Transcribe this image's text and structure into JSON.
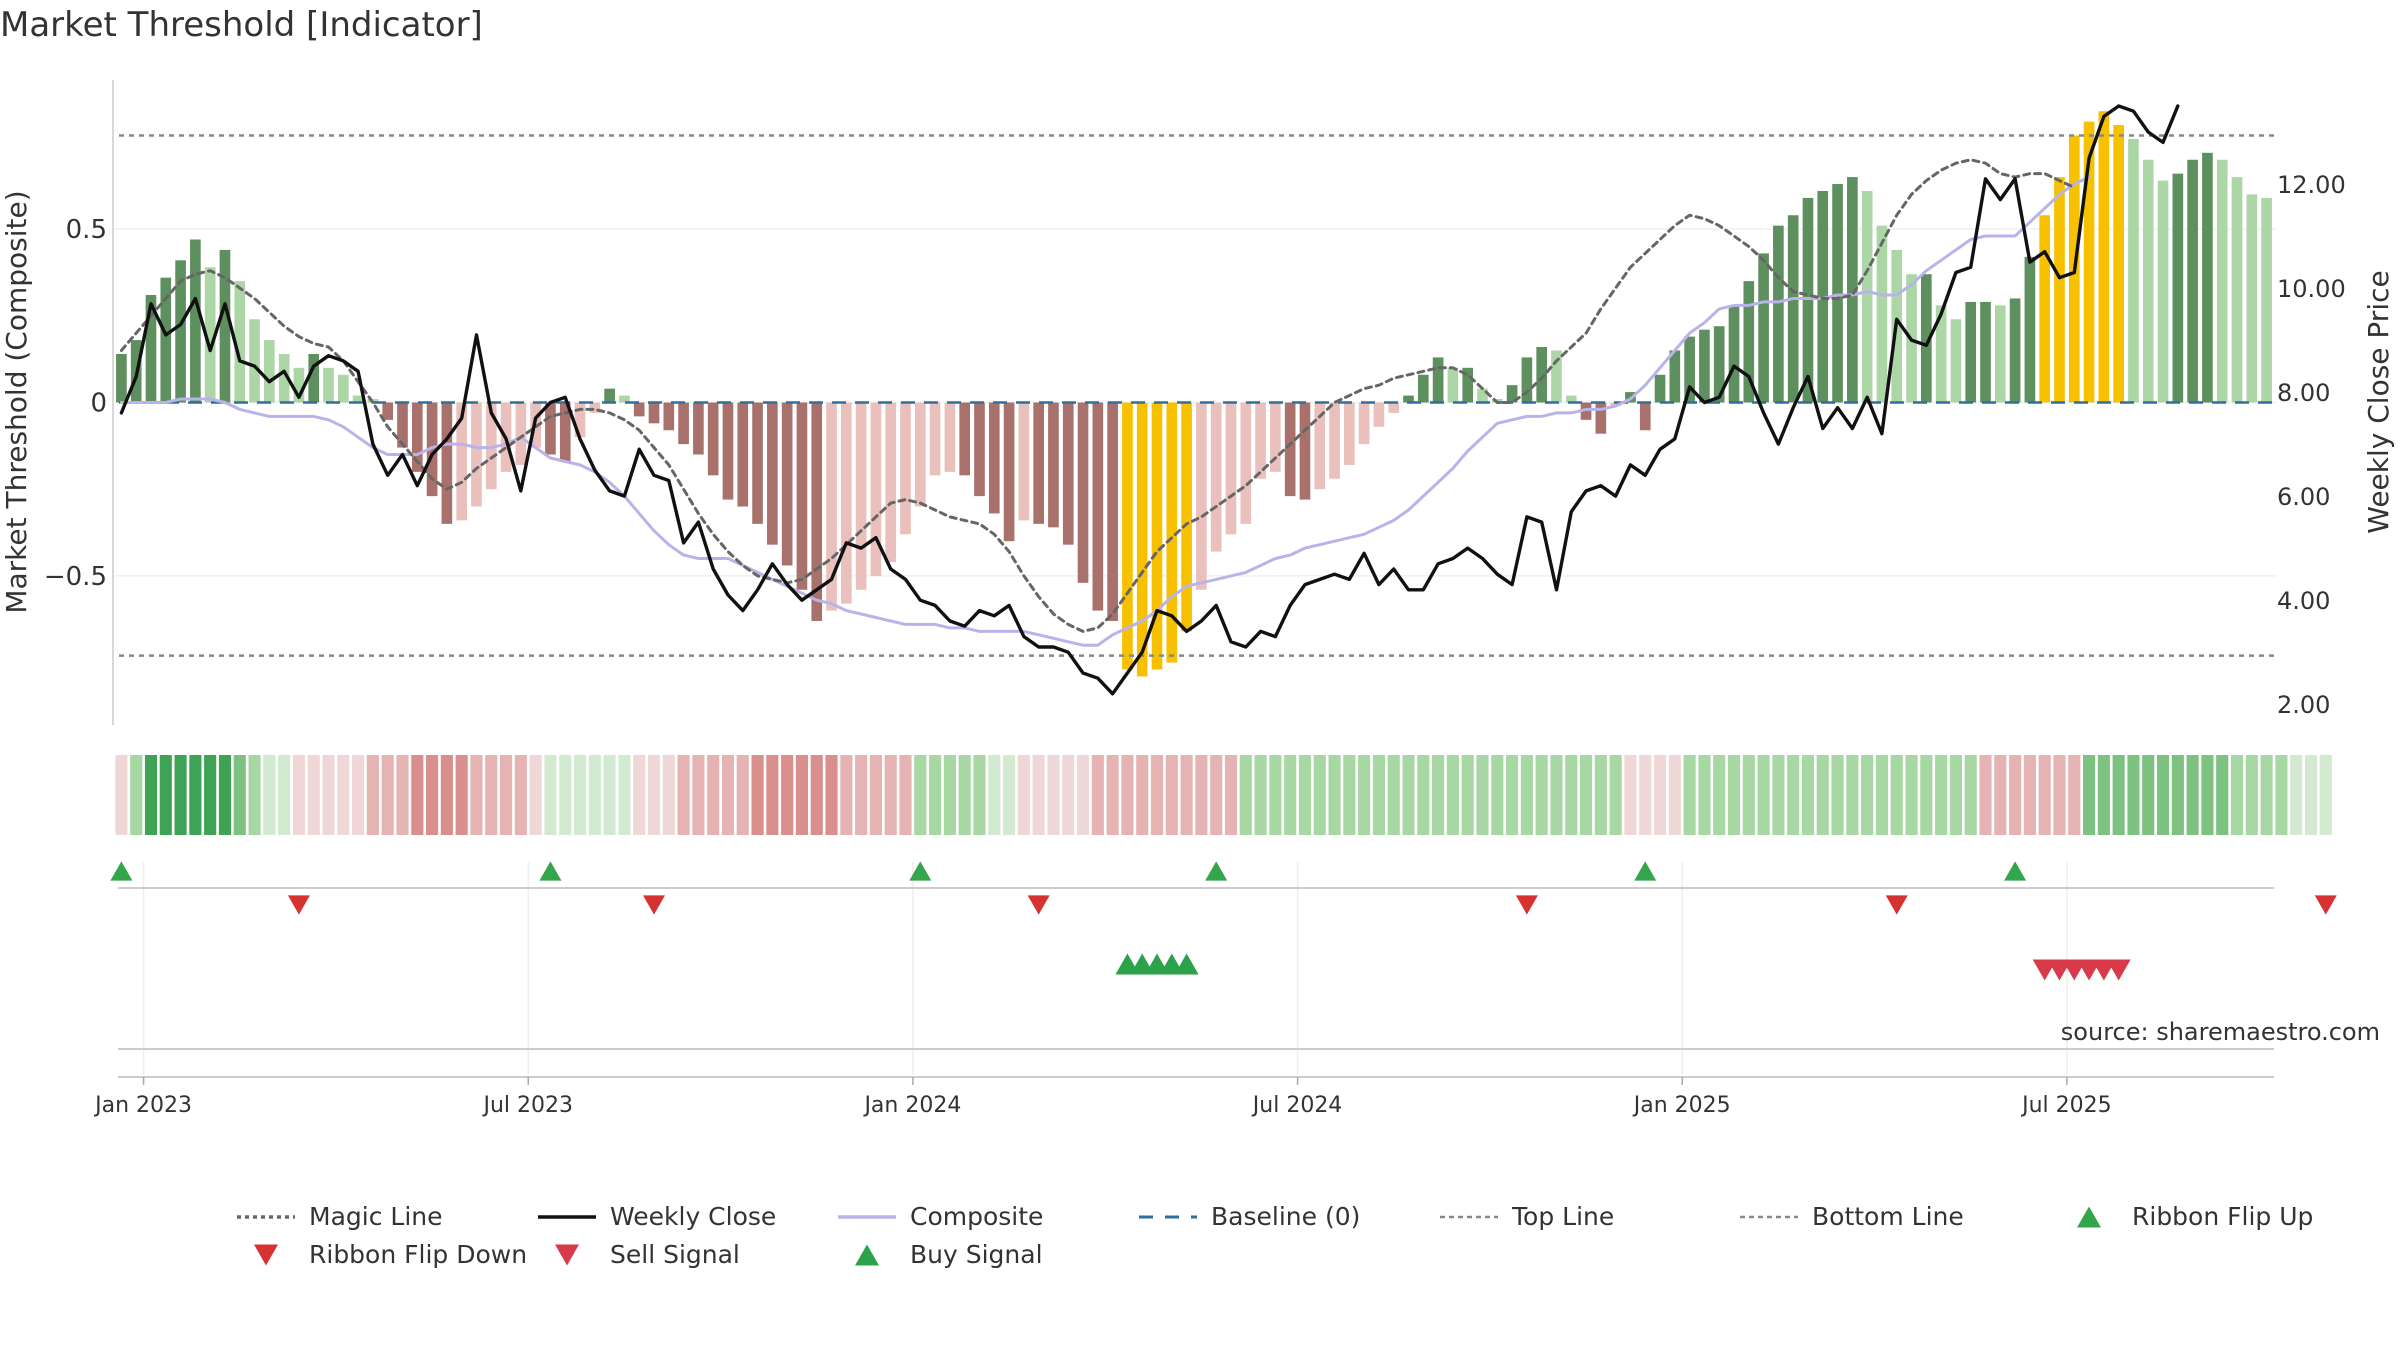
{
  "title": "Market Threshold [Indicator]",
  "source": "source: sharemaestro.com",
  "colors": {
    "bar_green_dark": "#5e8f5e",
    "bar_green_light": "#acd6a6",
    "bar_red_dark": "#a8716c",
    "bar_red_light": "#e9c0bb",
    "bar_yellow": "#f7c100",
    "magic_line": "#666666",
    "weekly_close": "#111111",
    "composite": "#b9b3ea",
    "baseline": "#2e6f9e",
    "threshold_lines": "#888888",
    "buy": "#2ca24a",
    "sell": "#d93a49",
    "ribbon_up": "#33a54a",
    "ribbon_down": "#d63232"
  },
  "chart_data": {
    "type": "bar",
    "title": "Market Threshold [Indicator]",
    "ylabel_left": "Market Threshold (Composite)",
    "ylabel_right": "Weekly Close Price",
    "ylim_left": [
      -0.93,
      0.93
    ],
    "ylim_right": [
      1.6,
      14.0
    ],
    "left_ticks": [
      {
        "v": 0.5,
        "label": "0.5"
      },
      {
        "v": 0,
        "label": "0"
      },
      {
        "v": -0.5,
        "label": "−0.5"
      }
    ],
    "right_ticks": [
      {
        "v": 12,
        "label": "12.00"
      },
      {
        "v": 10,
        "label": "10.00"
      },
      {
        "v": 8,
        "label": "8.00"
      },
      {
        "v": 6,
        "label": "6.00"
      },
      {
        "v": 4,
        "label": "4.00"
      },
      {
        "v": 2,
        "label": "2.00"
      }
    ],
    "x_ticks": [
      {
        "i": 1.5,
        "label": "Jan 2023"
      },
      {
        "i": 27.5,
        "label": "Jul 2023"
      },
      {
        "i": 53.5,
        "label": "Jan 2024"
      },
      {
        "i": 79.5,
        "label": "Jul 2024"
      },
      {
        "i": 105.5,
        "label": "Jan 2025"
      },
      {
        "i": 131.5,
        "label": "Jul 2025"
      }
    ],
    "top_line": 0.77,
    "bottom_line": -0.73,
    "baseline": 0,
    "composite_bars": [
      0.14,
      0.18,
      0.31,
      0.36,
      0.41,
      0.47,
      0.39,
      0.44,
      0.35,
      0.24,
      0.18,
      0.14,
      0.1,
      0.14,
      0.1,
      0.08,
      0.02,
      0.01,
      -0.05,
      -0.13,
      -0.2,
      -0.27,
      -0.35,
      -0.34,
      -0.3,
      -0.25,
      -0.2,
      -0.18,
      -0.13,
      -0.15,
      -0.17,
      -0.1,
      -0.03,
      0.04,
      0.02,
      -0.04,
      -0.06,
      -0.08,
      -0.12,
      -0.15,
      -0.21,
      -0.28,
      -0.3,
      -0.35,
      -0.41,
      -0.47,
      -0.54,
      -0.63,
      -0.6,
      -0.58,
      -0.54,
      -0.5,
      -0.46,
      -0.38,
      -0.3,
      -0.21,
      -0.2,
      -0.21,
      -0.27,
      -0.32,
      -0.4,
      -0.34,
      -0.35,
      -0.36,
      -0.41,
      -0.52,
      -0.6,
      -0.63,
      -0.77,
      -0.79,
      -0.77,
      -0.75,
      -0.66,
      -0.54,
      -0.43,
      -0.38,
      -0.35,
      -0.22,
      -0.2,
      -0.27,
      -0.28,
      -0.25,
      -0.22,
      -0.18,
      -0.12,
      -0.07,
      -0.03,
      0.02,
      0.08,
      0.13,
      0.1,
      0.1,
      0.04,
      0.01,
      0.05,
      0.13,
      0.16,
      0.15,
      0.02,
      -0.05,
      -0.09,
      -0.01,
      0.03,
      -0.08,
      0.08,
      0.15,
      0.19,
      0.21,
      0.22,
      0.28,
      0.35,
      0.43,
      0.51,
      0.54,
      0.59,
      0.61,
      0.63,
      0.65,
      0.61,
      0.51,
      0.44,
      0.37,
      0.37,
      0.28,
      0.24,
      0.29,
      0.29,
      0.28,
      0.3,
      0.42,
      0.54,
      0.65,
      0.77,
      0.81,
      0.84,
      0.8,
      0.76,
      0.7,
      0.64,
      0.66,
      0.7,
      0.72,
      0.7,
      0.65,
      0.6,
      0.59
    ],
    "weekly_close": [
      7.6,
      8.3,
      9.7,
      9.1,
      9.3,
      9.8,
      8.8,
      9.7,
      8.6,
      8.5,
      8.2,
      8.4,
      7.9,
      8.5,
      8.7,
      8.6,
      8.4,
      7.0,
      6.4,
      6.8,
      6.2,
      6.8,
      7.1,
      7.5,
      9.1,
      7.6,
      7.1,
      6.1,
      7.5,
      7.8,
      7.9,
      7.1,
      6.5,
      6.1,
      6.0,
      6.9,
      6.4,
      6.3,
      5.1,
      5.5,
      4.6,
      4.1,
      3.8,
      4.2,
      4.7,
      4.3,
      4.0,
      4.2,
      4.4,
      5.1,
      5.0,
      5.2,
      4.6,
      4.4,
      4.0,
      3.9,
      3.6,
      3.5,
      3.8,
      3.7,
      3.9,
      3.3,
      3.1,
      3.1,
      3.0,
      2.6,
      2.5,
      2.2,
      2.6,
      3.0,
      3.8,
      3.7,
      3.4,
      3.6,
      3.9,
      3.2,
      3.1,
      3.4,
      3.3,
      3.9,
      4.3,
      4.4,
      4.5,
      4.4,
      4.9,
      4.3,
      4.6,
      4.2,
      4.2,
      4.7,
      4.8,
      5.0,
      4.8,
      4.5,
      4.3,
      5.6,
      5.5,
      4.2,
      5.7,
      6.1,
      6.2,
      6.0,
      6.6,
      6.4,
      6.9,
      7.1,
      8.1,
      7.8,
      7.9,
      8.5,
      8.3,
      7.6,
      7.0,
      7.7,
      8.3,
      7.3,
      7.7,
      7.3,
      7.9,
      7.2,
      9.4,
      9.0,
      8.9,
      9.5,
      10.3,
      10.4,
      12.1,
      11.7,
      12.1,
      10.5,
      10.7,
      10.2,
      10.3,
      12.5,
      13.3,
      13.5,
      13.4,
      13.0,
      12.8,
      13.5
    ],
    "magic_line": [
      0.15,
      0.2,
      0.25,
      0.3,
      0.35,
      0.37,
      0.38,
      0.36,
      0.33,
      0.3,
      0.26,
      0.22,
      0.19,
      0.17,
      0.16,
      0.12,
      0.06,
      0.0,
      -0.07,
      -0.12,
      -0.17,
      -0.22,
      -0.25,
      -0.23,
      -0.19,
      -0.16,
      -0.13,
      -0.1,
      -0.07,
      -0.04,
      -0.03,
      -0.02,
      -0.02,
      -0.03,
      -0.05,
      -0.08,
      -0.13,
      -0.18,
      -0.25,
      -0.32,
      -0.38,
      -0.43,
      -0.47,
      -0.5,
      -0.51,
      -0.52,
      -0.51,
      -0.48,
      -0.45,
      -0.41,
      -0.37,
      -0.33,
      -0.29,
      -0.28,
      -0.29,
      -0.31,
      -0.33,
      -0.34,
      -0.35,
      -0.38,
      -0.43,
      -0.5,
      -0.56,
      -0.61,
      -0.64,
      -0.66,
      -0.65,
      -0.61,
      -0.55,
      -0.49,
      -0.43,
      -0.39,
      -0.35,
      -0.33,
      -0.3,
      -0.27,
      -0.24,
      -0.2,
      -0.16,
      -0.12,
      -0.08,
      -0.04,
      0.0,
      0.02,
      0.04,
      0.05,
      0.07,
      0.08,
      0.09,
      0.1,
      0.1,
      0.08,
      0.04,
      0.0,
      0.0,
      0.03,
      0.07,
      0.12,
      0.16,
      0.2,
      0.27,
      0.33,
      0.39,
      0.43,
      0.47,
      0.51,
      0.54,
      0.53,
      0.51,
      0.48,
      0.45,
      0.41,
      0.36,
      0.32,
      0.31,
      0.3,
      0.3,
      0.31,
      0.38,
      0.46,
      0.54,
      0.6,
      0.64,
      0.67,
      0.69,
      0.7,
      0.69,
      0.66,
      0.65,
      0.66,
      0.66,
      0.64,
      0.62
    ],
    "composite_line": [
      0.0,
      0.0,
      0.0,
      0.0,
      0.01,
      0.01,
      0.01,
      0.0,
      -0.02,
      -0.03,
      -0.04,
      -0.04,
      -0.04,
      -0.04,
      -0.05,
      -0.07,
      -0.1,
      -0.13,
      -0.15,
      -0.15,
      -0.15,
      -0.13,
      -0.12,
      -0.12,
      -0.13,
      -0.13,
      -0.12,
      -0.1,
      -0.13,
      -0.16,
      -0.17,
      -0.18,
      -0.2,
      -0.23,
      -0.27,
      -0.32,
      -0.37,
      -0.41,
      -0.44,
      -0.45,
      -0.45,
      -0.45,
      -0.47,
      -0.49,
      -0.51,
      -0.53,
      -0.55,
      -0.57,
      -0.58,
      -0.6,
      -0.61,
      -0.62,
      -0.63,
      -0.64,
      -0.64,
      -0.64,
      -0.65,
      -0.65,
      -0.66,
      -0.66,
      -0.66,
      -0.66,
      -0.67,
      -0.68,
      -0.69,
      -0.7,
      -0.7,
      -0.67,
      -0.65,
      -0.63,
      -0.6,
      -0.56,
      -0.53,
      -0.52,
      -0.51,
      -0.5,
      -0.49,
      -0.47,
      -0.45,
      -0.44,
      -0.42,
      -0.41,
      -0.4,
      -0.39,
      -0.38,
      -0.36,
      -0.34,
      -0.31,
      -0.27,
      -0.23,
      -0.19,
      -0.14,
      -0.1,
      -0.06,
      -0.05,
      -0.04,
      -0.04,
      -0.03,
      -0.03,
      -0.02,
      -0.02,
      -0.01,
      0.01,
      0.05,
      0.1,
      0.15,
      0.2,
      0.23,
      0.27,
      0.28,
      0.28,
      0.29,
      0.29,
      0.3,
      0.3,
      0.3,
      0.31,
      0.31,
      0.32,
      0.31,
      0.31,
      0.34,
      0.38,
      0.41,
      0.44,
      0.47,
      0.48,
      0.48,
      0.48,
      0.52,
      0.56,
      0.6,
      0.63,
      0.65
    ],
    "yellow_bars": [
      68,
      69,
      70,
      71,
      72,
      130,
      131,
      132,
      133,
      134,
      135
    ],
    "ribbon_levels": [
      -1,
      2,
      4,
      4,
      4,
      4,
      4,
      4,
      3,
      2,
      1,
      1,
      -1,
      -1,
      -1,
      -1,
      -1,
      -2,
      -2,
      -2,
      -3,
      -3,
      -3,
      -3,
      -2,
      -2,
      -2,
      -2,
      -1,
      1,
      1,
      1,
      1,
      1,
      1,
      -1,
      -1,
      -1,
      -2,
      -2,
      -2,
      -2,
      -2,
      -3,
      -3,
      -3,
      -3,
      -3,
      -3,
      -2,
      -2,
      -2,
      -2,
      -2,
      2,
      2,
      2,
      2,
      2,
      1,
      1,
      -1,
      -1,
      -1,
      -1,
      -1,
      -2,
      -2,
      -2,
      -2,
      -2,
      -2,
      -2,
      -2,
      -2,
      -2,
      2,
      2,
      2,
      2,
      2,
      2,
      2,
      2,
      2,
      2,
      2,
      2,
      2,
      2,
      2,
      2,
      2,
      2,
      2,
      2,
      2,
      2,
      2,
      2,
      2,
      2,
      -1,
      -1,
      -1,
      -1,
      2,
      2,
      2,
      2,
      2,
      2,
      2,
      2,
      2,
      2,
      2,
      2,
      2,
      2,
      2,
      2,
      2,
      2,
      2,
      2,
      -2,
      -2,
      -2,
      -2,
      -2,
      -2,
      -2,
      3,
      3,
      3,
      3,
      3,
      3,
      3,
      3,
      3,
      3,
      2,
      2,
      2,
      2,
      1,
      1,
      1
    ],
    "ribbon_flip_up": [
      0,
      29,
      54,
      74,
      103,
      128
    ],
    "ribbon_flip_down": [
      12,
      36,
      62,
      95,
      120,
      149
    ],
    "buy_signal": [
      68,
      69,
      70,
      71,
      72
    ],
    "sell_signal": [
      130,
      131,
      132,
      133,
      134,
      135
    ],
    "legend": [
      "Magic Line",
      "Weekly Close",
      "Composite",
      "Baseline (0)",
      "Top Line",
      "Bottom Line",
      "Ribbon Flip Up",
      "Ribbon Flip Down",
      "Sell Signal",
      "Buy Signal"
    ]
  }
}
